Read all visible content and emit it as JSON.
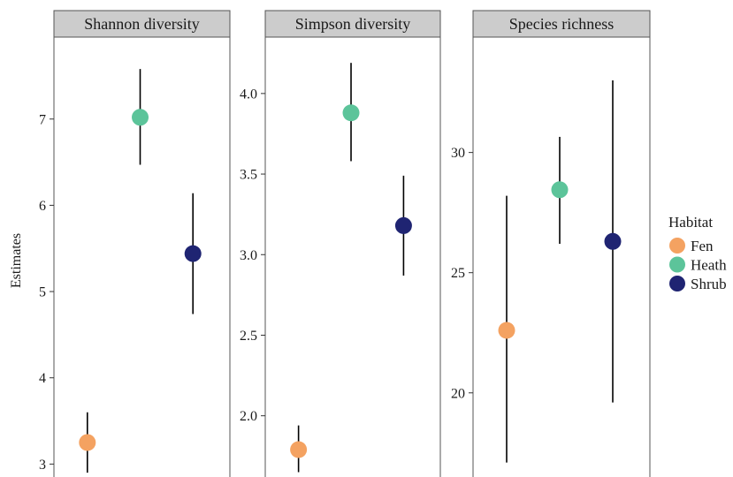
{
  "chart_data": {
    "type": "scatter",
    "ylabel": "Estimates",
    "legend": {
      "title": "Habitat",
      "placement": "right",
      "entries": [
        {
          "name": "Fen",
          "color": "#f4a261"
        },
        {
          "name": "Heath",
          "color": "#5cc49a"
        },
        {
          "name": "Shrub",
          "color": "#1f2472"
        }
      ]
    },
    "panels": [
      {
        "title": "Shannon diversity",
        "ylim": [
          2.85,
          7.95
        ],
        "ticks": [
          3,
          4,
          5,
          6,
          7
        ],
        "tick_labels": [
          "3",
          "4",
          "5",
          "6",
          "7"
        ],
        "points": [
          {
            "group": "Fen",
            "estimate": 3.25,
            "lower": 2.9,
            "upper": 3.6
          },
          {
            "group": "Heath",
            "estimate": 7.02,
            "lower": 6.47,
            "upper": 7.58
          },
          {
            "group": "Shrub",
            "estimate": 5.44,
            "lower": 4.74,
            "upper": 6.14
          }
        ]
      },
      {
        "title": "Simpson diversity",
        "ylim": [
          1.62,
          4.35
        ],
        "ticks": [
          2.0,
          2.5,
          3.0,
          3.5,
          4.0
        ],
        "tick_labels": [
          "2.0",
          "2.5",
          "3.0",
          "3.5",
          "4.0"
        ],
        "points": [
          {
            "group": "Fen",
            "estimate": 1.79,
            "lower": 1.65,
            "upper": 1.94
          },
          {
            "group": "Heath",
            "estimate": 3.88,
            "lower": 3.58,
            "upper": 4.19
          },
          {
            "group": "Shrub",
            "estimate": 3.18,
            "lower": 2.87,
            "upper": 3.49
          }
        ]
      },
      {
        "title": "Species richness",
        "ylim": [
          16.5,
          34.8
        ],
        "ticks": [
          20,
          25,
          30
        ],
        "tick_labels": [
          "20",
          "25",
          "30"
        ],
        "points": [
          {
            "group": "Fen",
            "estimate": 22.6,
            "lower": 17.1,
            "upper": 28.2
          },
          {
            "group": "Heath",
            "estimate": 28.45,
            "lower": 26.2,
            "upper": 30.65
          },
          {
            "group": "Shrub",
            "estimate": 26.3,
            "lower": 19.6,
            "upper": 33.0
          }
        ]
      }
    ]
  }
}
